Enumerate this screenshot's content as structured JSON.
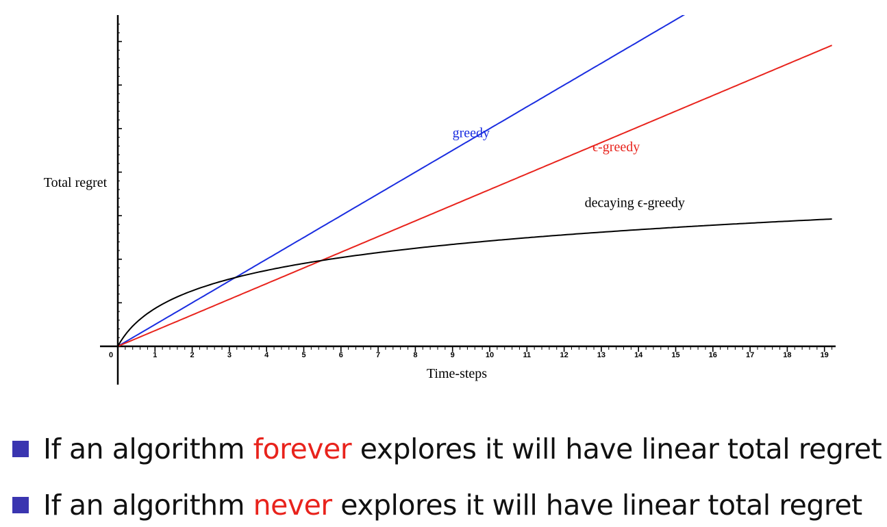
{
  "chart_data": {
    "type": "line",
    "title": "",
    "xlabel": "Time-steps",
    "ylabel": "Total regret",
    "xlim": [
      0,
      19.2
    ],
    "ylim": [
      0,
      9.5
    ],
    "x_ticks": [
      0,
      1,
      2,
      3,
      4,
      5,
      6,
      7,
      8,
      9,
      10,
      11,
      12,
      13,
      14,
      15,
      16,
      17,
      18,
      19
    ],
    "y_ticks_labeled": false,
    "grid": false,
    "legend": "none (inline curve labels)",
    "series": [
      {
        "name": "greedy",
        "color": "#1a2de0",
        "form": "linear",
        "slope": 0.625,
        "label_at": [
          9.5,
          6.0
        ]
      },
      {
        "name": "ϵ-greedy",
        "color": "#e8231c",
        "form": "linear",
        "slope": 0.45,
        "label_at": [
          13.4,
          5.6
        ]
      },
      {
        "name": "decaying ϵ-greedy",
        "color": "#000000",
        "form": "log",
        "a": 1.0,
        "b": 0.51,
        "label_at": [
          13.9,
          4.0
        ]
      }
    ]
  },
  "bullets": [
    {
      "pre": "If an algorithm ",
      "highlight": "forever",
      "post": " explores it will have linear total regret"
    },
    {
      "pre": "If an algorithm ",
      "highlight": "never",
      "post": " explores it will have linear total regret"
    }
  ],
  "colors": {
    "bullet_square": "#3a35b0",
    "highlight": "#e8231c"
  }
}
